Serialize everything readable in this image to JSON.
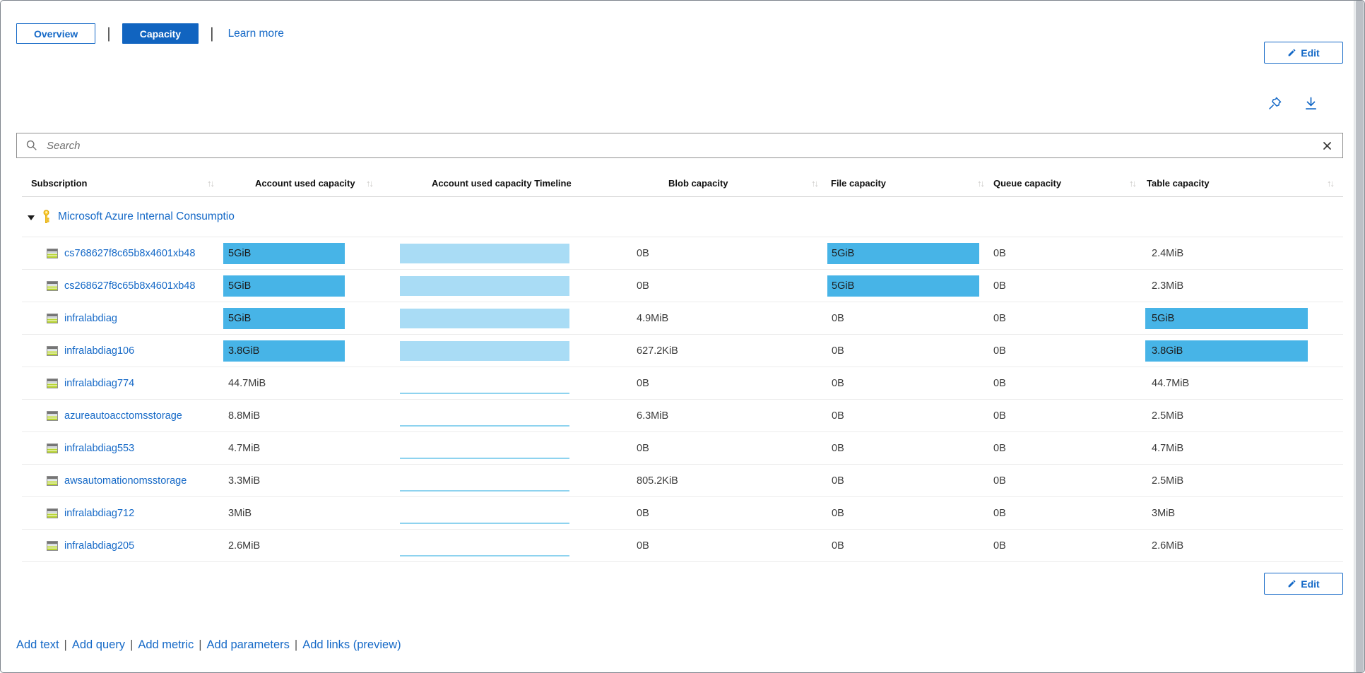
{
  "header": {
    "tabs": [
      {
        "label": "Overview",
        "active": false
      },
      {
        "label": "Capacity",
        "active": true
      }
    ],
    "learn_more_label": "Learn more",
    "edit_label": "Edit"
  },
  "toolbar_icons": [
    "pin-icon",
    "download-icon"
  ],
  "search": {
    "placeholder": "Search",
    "value": ""
  },
  "grid": {
    "columns": [
      {
        "label": "Subscription",
        "sortable": true
      },
      {
        "label": "Account used capacity",
        "sortable": true
      },
      {
        "label": "Account used capacity Timeline",
        "sortable": false
      },
      {
        "label": "Blob capacity",
        "sortable": true
      },
      {
        "label": "File capacity",
        "sortable": true
      },
      {
        "label": "Queue capacity",
        "sortable": true
      },
      {
        "label": "Table capacity",
        "sortable": true
      }
    ],
    "group_row": {
      "label": "Microsoft Azure Internal Consumptio",
      "expanded": true,
      "icon": "key-icon"
    },
    "rows": [
      {
        "name": "cs768627f8c65b8x4601xb48",
        "account": {
          "text": "5GiB",
          "bar": 1
        },
        "timeline": "bar",
        "blob": {
          "text": "0B"
        },
        "file": {
          "text": "5GiB",
          "bar": 1
        },
        "queue": {
          "text": "0B"
        },
        "table": {
          "text": "2.4MiB"
        }
      },
      {
        "name": "cs268627f8c65b8x4601xb48",
        "account": {
          "text": "5GiB",
          "bar": 1
        },
        "timeline": "bar",
        "blob": {
          "text": "0B"
        },
        "file": {
          "text": "5GiB",
          "bar": 1
        },
        "queue": {
          "text": "0B"
        },
        "table": {
          "text": "2.3MiB"
        }
      },
      {
        "name": "infralabdiag",
        "account": {
          "text": "5GiB",
          "bar": 1
        },
        "timeline": "bar",
        "blob": {
          "text": "4.9MiB"
        },
        "file": {
          "text": "0B"
        },
        "queue": {
          "text": "0B"
        },
        "table": {
          "text": "5GiB",
          "bar": 1
        }
      },
      {
        "name": "infralabdiag106",
        "account": {
          "text": "3.8GiB",
          "bar": 1
        },
        "timeline": "bar",
        "blob": {
          "text": "627.2KiB"
        },
        "file": {
          "text": "0B"
        },
        "queue": {
          "text": "0B"
        },
        "table": {
          "text": "3.8GiB",
          "bar": 1
        }
      },
      {
        "name": "infralabdiag774",
        "account": {
          "text": "44.7MiB"
        },
        "timeline": "line",
        "blob": {
          "text": "0B"
        },
        "file": {
          "text": "0B"
        },
        "queue": {
          "text": "0B"
        },
        "table": {
          "text": "44.7MiB"
        }
      },
      {
        "name": "azureautoacctomsstorage",
        "account": {
          "text": "8.8MiB"
        },
        "timeline": "line",
        "blob": {
          "text": "6.3MiB"
        },
        "file": {
          "text": "0B"
        },
        "queue": {
          "text": "0B"
        },
        "table": {
          "text": "2.5MiB"
        }
      },
      {
        "name": "infralabdiag553",
        "account": {
          "text": "4.7MiB"
        },
        "timeline": "line",
        "blob": {
          "text": "0B"
        },
        "file": {
          "text": "0B"
        },
        "queue": {
          "text": "0B"
        },
        "table": {
          "text": "4.7MiB"
        }
      },
      {
        "name": "awsautomationomsstorage",
        "account": {
          "text": "3.3MiB"
        },
        "timeline": "line",
        "blob": {
          "text": "805.2KiB"
        },
        "file": {
          "text": "0B"
        },
        "queue": {
          "text": "0B"
        },
        "table": {
          "text": "2.5MiB"
        }
      },
      {
        "name": "infralabdiag712",
        "account": {
          "text": "3MiB"
        },
        "timeline": "line",
        "blob": {
          "text": "0B"
        },
        "file": {
          "text": "0B"
        },
        "queue": {
          "text": "0B"
        },
        "table": {
          "text": "3MiB"
        }
      },
      {
        "name": "infralabdiag205",
        "account": {
          "text": "2.6MiB"
        },
        "timeline": "line",
        "blob": {
          "text": "0B"
        },
        "file": {
          "text": "0B"
        },
        "queue": {
          "text": "0B"
        },
        "table": {
          "text": "2.6MiB"
        }
      }
    ]
  },
  "footer": {
    "edit_label": "Edit",
    "links": [
      "Add text",
      "Add query",
      "Add metric",
      "Add parameters",
      "Add links (preview)"
    ]
  },
  "colors": {
    "accent": "#1164c0",
    "link": "#1569c7",
    "bar": "#47b4e7",
    "timeline_fill": "#a9dcf5",
    "timeline_line": "#8ed3ef"
  }
}
